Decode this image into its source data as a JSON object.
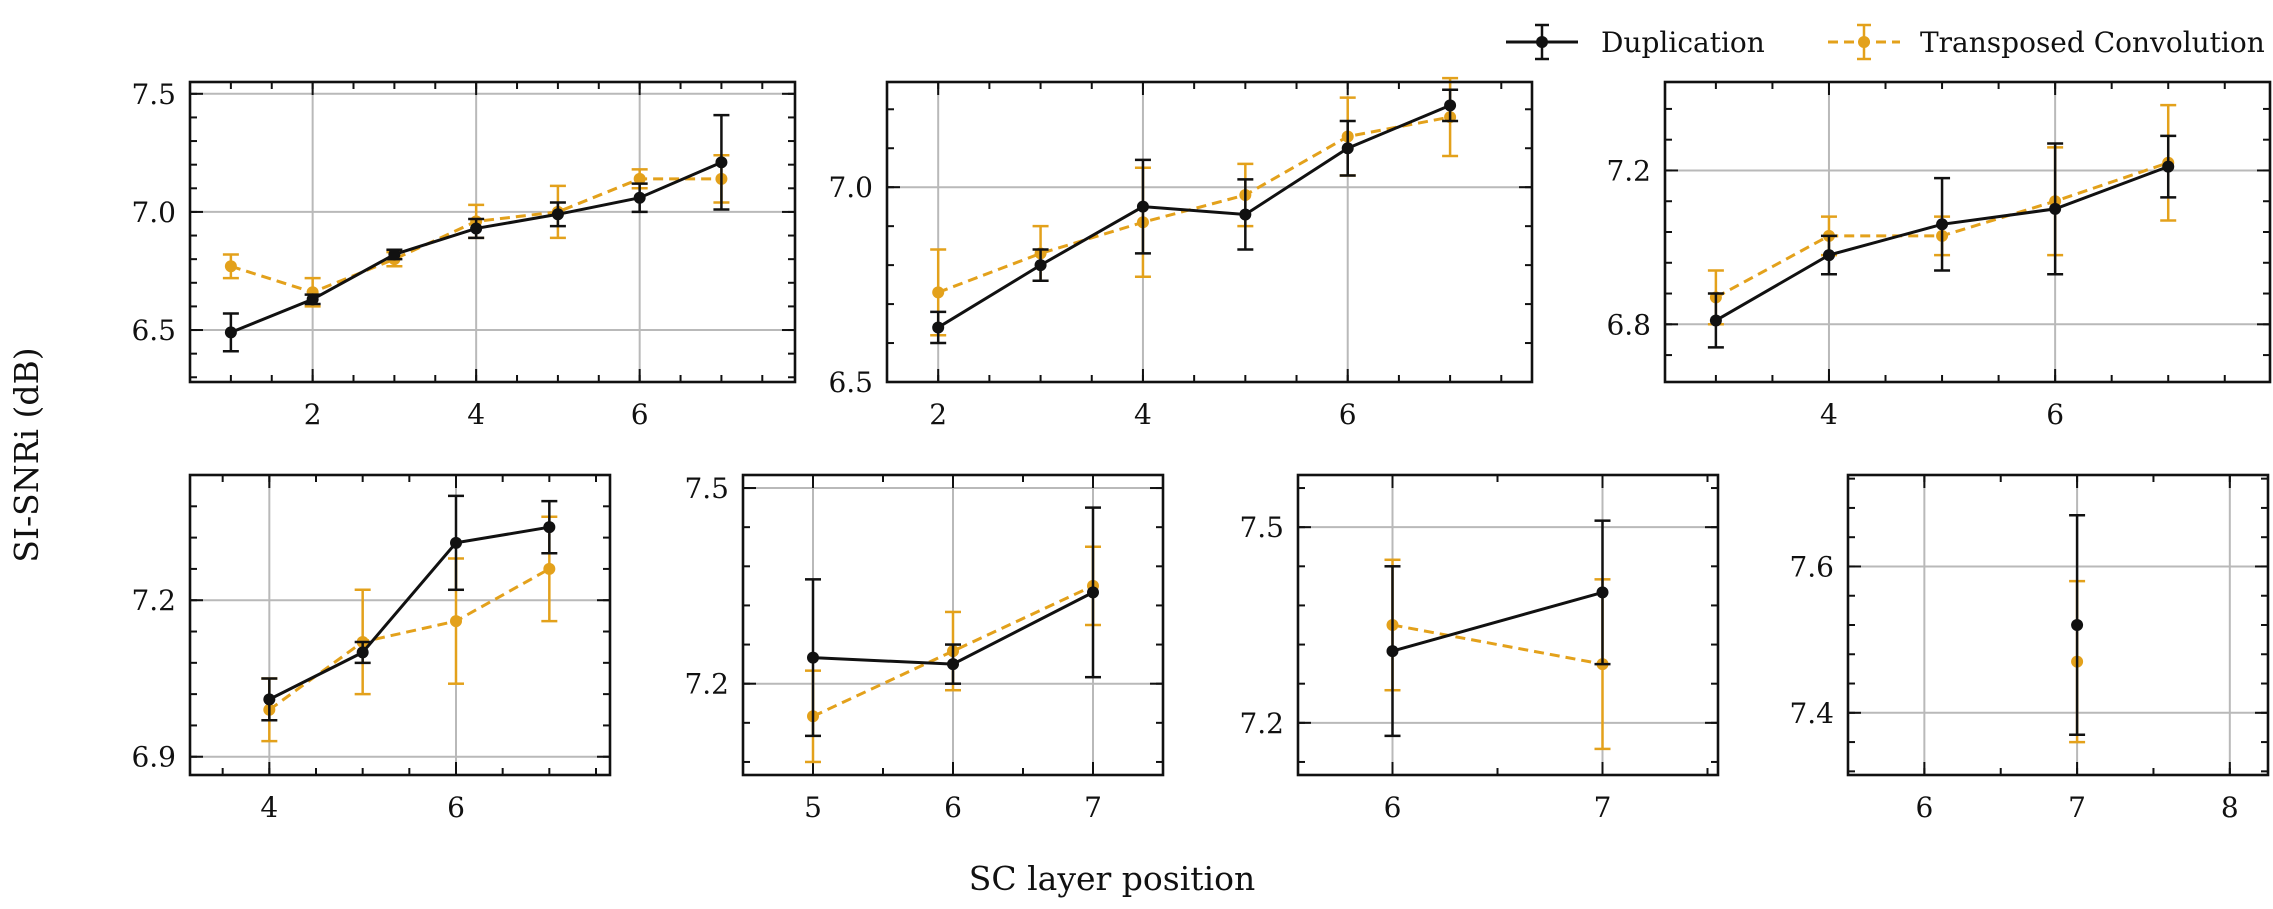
{
  "colors": {
    "duplication": "#111111",
    "transposed": "#E3A11B",
    "grid": "#b9b9b9"
  },
  "legend": {
    "position": "top-right",
    "items": [
      {
        "label": "Duplication",
        "color": "#111111",
        "dashed": false
      },
      {
        "label": "Transposed Convolution",
        "color": "#E3A11B",
        "dashed": true
      }
    ]
  },
  "ylabel": "SI-SNRi (dB)",
  "xlabel": "SC layer position",
  "chart_data": [
    {
      "type": "line",
      "xlim": [
        0.5,
        7.9
      ],
      "ylim": [
        6.28,
        7.55
      ],
      "xticks": [
        2,
        4,
        6
      ],
      "yticks": [
        6.5,
        7.0,
        7.5
      ],
      "xtick_labels": [
        "2",
        "4",
        "6"
      ],
      "ytick_labels": [
        "6.5",
        "7.0",
        "7.5"
      ],
      "grid": true,
      "series": [
        {
          "name": "Duplication",
          "x": [
            1,
            2,
            3,
            4,
            5,
            6,
            7
          ],
          "y": [
            6.49,
            6.63,
            6.82,
            6.93,
            6.99,
            7.06,
            7.21
          ],
          "err": [
            0.08,
            0.02,
            0.02,
            0.04,
            0.05,
            0.06,
            0.2
          ]
        },
        {
          "name": "Transposed Convolution",
          "x": [
            1,
            2,
            3,
            4,
            5,
            6,
            7
          ],
          "y": [
            6.77,
            6.66,
            6.8,
            6.96,
            7.0,
            7.14,
            7.14
          ],
          "err": [
            0.05,
            0.06,
            0.03,
            0.07,
            0.11,
            0.04,
            0.1
          ]
        }
      ]
    },
    {
      "type": "line",
      "xlim": [
        1.5,
        7.8
      ],
      "ylim": [
        6.5,
        7.27
      ],
      "xticks": [
        2,
        4,
        6
      ],
      "yticks": [
        6.5,
        7.0
      ],
      "xtick_labels": [
        "2",
        "4",
        "6"
      ],
      "ytick_labels": [
        "6.5",
        "7.0"
      ],
      "grid": true,
      "series": [
        {
          "name": "Duplication",
          "x": [
            2,
            3,
            4,
            5,
            6,
            7
          ],
          "y": [
            6.64,
            6.8,
            6.95,
            6.93,
            7.1,
            7.21
          ],
          "err": [
            0.04,
            0.04,
            0.12,
            0.09,
            0.07,
            0.04
          ]
        },
        {
          "name": "Transposed Convolution",
          "x": [
            2,
            3,
            4,
            5,
            6,
            7
          ],
          "y": [
            6.73,
            6.83,
            6.91,
            6.98,
            7.13,
            7.18
          ],
          "err": [
            0.11,
            0.07,
            0.14,
            0.08,
            0.1,
            0.1
          ]
        }
      ]
    },
    {
      "type": "line",
      "xlim": [
        2.55,
        7.9
      ],
      "ylim": [
        6.65,
        7.43
      ],
      "xticks": [
        4,
        6
      ],
      "yticks": [
        6.8,
        7.2
      ],
      "xtick_labels": [
        "4",
        "6"
      ],
      "ytick_labels": [
        "6.8",
        "7.2"
      ],
      "grid": true,
      "series": [
        {
          "name": "Duplication",
          "x": [
            3,
            4,
            5,
            6,
            7
          ],
          "y": [
            6.81,
            6.98,
            7.06,
            7.1,
            7.21
          ],
          "err": [
            0.07,
            0.05,
            0.12,
            0.17,
            0.08
          ]
        },
        {
          "name": "Transposed Convolution",
          "x": [
            3,
            4,
            5,
            6,
            7
          ],
          "y": [
            6.87,
            7.03,
            7.03,
            7.12,
            7.22
          ],
          "err": [
            0.07,
            0.05,
            0.05,
            0.14,
            0.15
          ]
        }
      ]
    },
    {
      "type": "line",
      "xlim": [
        3.15,
        7.65
      ],
      "ylim": [
        6.865,
        7.44
      ],
      "xticks": [
        4,
        6
      ],
      "yticks": [
        6.9,
        7.2
      ],
      "xtick_labels": [
        "4",
        "6"
      ],
      "ytick_labels": [
        "6.9",
        "7.2"
      ],
      "grid": true,
      "series": [
        {
          "name": "Duplication",
          "x": [
            4,
            5,
            6,
            7
          ],
          "y": [
            7.01,
            7.1,
            7.31,
            7.34
          ],
          "err": [
            0.04,
            0.02,
            0.09,
            0.05
          ]
        },
        {
          "name": "Transposed Convolution",
          "x": [
            4,
            5,
            6,
            7
          ],
          "y": [
            6.99,
            7.12,
            7.16,
            7.26
          ],
          "err": [
            0.06,
            0.1,
            0.12,
            0.1
          ]
        }
      ]
    },
    {
      "type": "line",
      "xlim": [
        4.5,
        7.5
      ],
      "ylim": [
        7.06,
        7.52
      ],
      "xticks": [
        5,
        6,
        7
      ],
      "yticks": [
        7.2,
        7.5
      ],
      "xtick_labels": [
        "5",
        "6",
        "7"
      ],
      "ytick_labels": [
        "7.2",
        "7.5"
      ],
      "grid": true,
      "series": [
        {
          "name": "Duplication",
          "x": [
            5,
            6,
            7
          ],
          "y": [
            7.24,
            7.23,
            7.34
          ],
          "err": [
            0.12,
            0.03,
            0.13
          ]
        },
        {
          "name": "Transposed Convolution",
          "x": [
            5,
            6,
            7
          ],
          "y": [
            7.15,
            7.25,
            7.35
          ],
          "err": [
            0.07,
            0.06,
            0.06
          ]
        }
      ]
    },
    {
      "type": "line",
      "xlim": [
        5.55,
        7.55
      ],
      "ylim": [
        7.12,
        7.58
      ],
      "xticks": [
        6,
        7
      ],
      "yticks": [
        7.2,
        7.5
      ],
      "xtick_labels": [
        "6",
        "7"
      ],
      "ytick_labels": [
        "7.2",
        "7.5"
      ],
      "grid": true,
      "series": [
        {
          "name": "Duplication",
          "x": [
            6,
            7
          ],
          "y": [
            7.31,
            7.4
          ],
          "err": [
            0.13,
            0.11
          ]
        },
        {
          "name": "Transposed Convolution",
          "x": [
            6,
            7
          ],
          "y": [
            7.35,
            7.29
          ],
          "err": [
            0.1,
            0.13
          ]
        }
      ]
    },
    {
      "type": "line",
      "xlim": [
        5.5,
        8.25
      ],
      "ylim": [
        7.315,
        7.725
      ],
      "xticks": [
        6,
        7,
        8
      ],
      "yticks": [
        7.4,
        7.6
      ],
      "xtick_labels": [
        "6",
        "7",
        "8"
      ],
      "ytick_labels": [
        "7.4",
        "7.6"
      ],
      "grid": true,
      "series": [
        {
          "name": "Duplication",
          "x": [
            7
          ],
          "y": [
            7.52
          ],
          "err": [
            0.15
          ]
        },
        {
          "name": "Transposed Convolution",
          "x": [
            7
          ],
          "y": [
            7.47
          ],
          "err": [
            0.11
          ]
        }
      ]
    }
  ]
}
